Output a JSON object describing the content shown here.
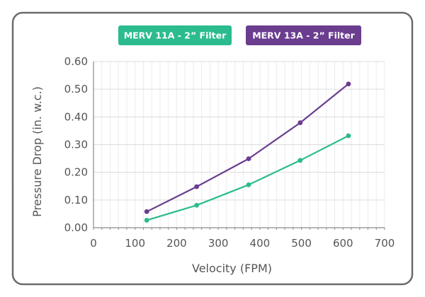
{
  "chart_data": {
    "type": "line",
    "xlabel": "Velocity (FPM)",
    "ylabel": "Pressure Drop (in. w.c.)",
    "xlim": [
      0,
      700
    ],
    "ylim": [
      0,
      0.6
    ],
    "x_ticks": [
      "0",
      "100",
      "200",
      "300",
      "400",
      "500",
      "600",
      "700"
    ],
    "y_ticks": [
      "0.00",
      "0.10",
      "0.20",
      "0.30",
      "0.40",
      "0.50",
      "0.60"
    ],
    "grid": true,
    "legend_position": "top",
    "series": [
      {
        "name": "MERV 11A - 2” Filter",
        "color": "#2bbb8e",
        "points": [
          [
            128,
            0.027
          ],
          [
            248,
            0.081
          ],
          [
            373,
            0.155
          ],
          [
            497,
            0.243
          ],
          [
            613,
            0.332
          ]
        ]
      },
      {
        "name": "MERV 13A - 2” Filter",
        "color": "#6a3d8f",
        "points": [
          [
            128,
            0.058
          ],
          [
            248,
            0.148
          ],
          [
            373,
            0.249
          ],
          [
            497,
            0.379
          ],
          [
            613,
            0.519
          ]
        ]
      }
    ]
  }
}
